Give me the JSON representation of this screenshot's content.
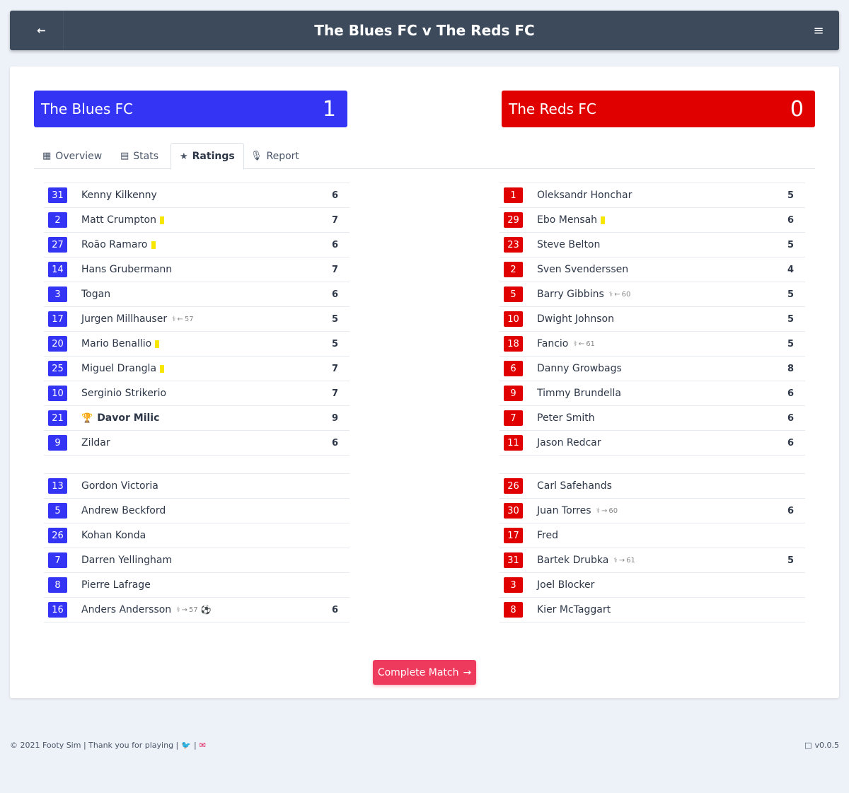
{
  "header": {
    "back_icon": "arrow-left-icon",
    "title": "The Blues FC v The Reds FC",
    "menu_icon": "hamburger-menu-icon",
    "background": "#3c4a5c"
  },
  "scoreboard": {
    "home": {
      "name": "The Blues FC",
      "goals": "1",
      "color": "#3434f5"
    },
    "away": {
      "name": "The Reds FC",
      "goals": "0",
      "color": "#e00000"
    }
  },
  "tabs": [
    {
      "label": "Overview",
      "icon": "chalkboard-icon",
      "active": false
    },
    {
      "label": "Stats",
      "icon": "presentation-chart-icon",
      "active": false
    },
    {
      "label": "Ratings",
      "icon": "star-icon",
      "active": true
    },
    {
      "label": "Report",
      "icon": "microphone-icon",
      "active": false
    }
  ],
  "home": {
    "starters": [
      {
        "number": "31",
        "name": "Kenny Kilkenny",
        "rating": "6"
      },
      {
        "number": "2",
        "name": "Matt Crumpton",
        "yellow": true,
        "rating": "7"
      },
      {
        "number": "27",
        "name": "Roão Ramaro",
        "yellow": true,
        "rating": "6"
      },
      {
        "number": "14",
        "name": "Hans Grubermann",
        "rating": "7"
      },
      {
        "number": "3",
        "name": "Togan",
        "rating": "6"
      },
      {
        "number": "17",
        "name": "Jurgen Millhauser",
        "sub_off": "57",
        "rating": "5"
      },
      {
        "number": "20",
        "name": "Mario Benallio",
        "yellow": true,
        "rating": "5"
      },
      {
        "number": "25",
        "name": "Miguel Drangla",
        "yellow": true,
        "rating": "7"
      },
      {
        "number": "10",
        "name": "Serginio Strikerio",
        "rating": "7"
      },
      {
        "number": "21",
        "name": "Davor Milic",
        "motm": true,
        "rating": "9"
      },
      {
        "number": "9",
        "name": "Zildar",
        "rating": "6"
      }
    ],
    "bench": [
      {
        "number": "13",
        "name": "Gordon Victoria",
        "rating": ""
      },
      {
        "number": "5",
        "name": "Andrew Beckford",
        "rating": ""
      },
      {
        "number": "26",
        "name": "Kohan Konda",
        "rating": ""
      },
      {
        "number": "7",
        "name": "Darren Yellingham",
        "rating": ""
      },
      {
        "number": "8",
        "name": "Pierre Lafrage",
        "rating": ""
      },
      {
        "number": "16",
        "name": "Anders Andersson",
        "sub_on": "57",
        "goal": true,
        "rating": "6"
      }
    ]
  },
  "away": {
    "starters": [
      {
        "number": "1",
        "name": "Oleksandr Honchar",
        "rating": "5"
      },
      {
        "number": "29",
        "name": "Ebo Mensah",
        "yellow": true,
        "rating": "6"
      },
      {
        "number": "23",
        "name": "Steve Belton",
        "rating": "5"
      },
      {
        "number": "2",
        "name": "Sven Svenderssen",
        "rating": "4"
      },
      {
        "number": "5",
        "name": "Barry Gibbins",
        "sub_off": "60",
        "rating": "5"
      },
      {
        "number": "10",
        "name": "Dwight Johnson",
        "rating": "5"
      },
      {
        "number": "18",
        "name": "Fancio",
        "sub_off": "61",
        "rating": "5"
      },
      {
        "number": "6",
        "name": "Danny Growbags",
        "rating": "8"
      },
      {
        "number": "9",
        "name": "Timmy Brundella",
        "rating": "6"
      },
      {
        "number": "7",
        "name": "Peter Smith",
        "rating": "6"
      },
      {
        "number": "11",
        "name": "Jason Redcar",
        "rating": "6"
      }
    ],
    "bench": [
      {
        "number": "26",
        "name": "Carl Safehands",
        "rating": ""
      },
      {
        "number": "30",
        "name": "Juan Torres",
        "sub_on": "60",
        "rating": "6"
      },
      {
        "number": "17",
        "name": "Fred",
        "rating": ""
      },
      {
        "number": "31",
        "name": "Bartek Drubka",
        "sub_on": "61",
        "rating": "5"
      },
      {
        "number": "3",
        "name": "Joel Blocker",
        "rating": ""
      },
      {
        "number": "8",
        "name": "Kier McTaggart",
        "rating": ""
      }
    ]
  },
  "complete_button": {
    "label": "Complete Match",
    "icon": "arrow-right-icon",
    "color": "#ee3a5d"
  },
  "footer": {
    "left_text": "© 2021 Footy Sim | Thank you for playing |",
    "separator": "|",
    "twitter_icon": "twitter-icon",
    "mail_icon": "mail-icon",
    "version_icon": "calendar-icon",
    "version": "v0.0.5"
  }
}
